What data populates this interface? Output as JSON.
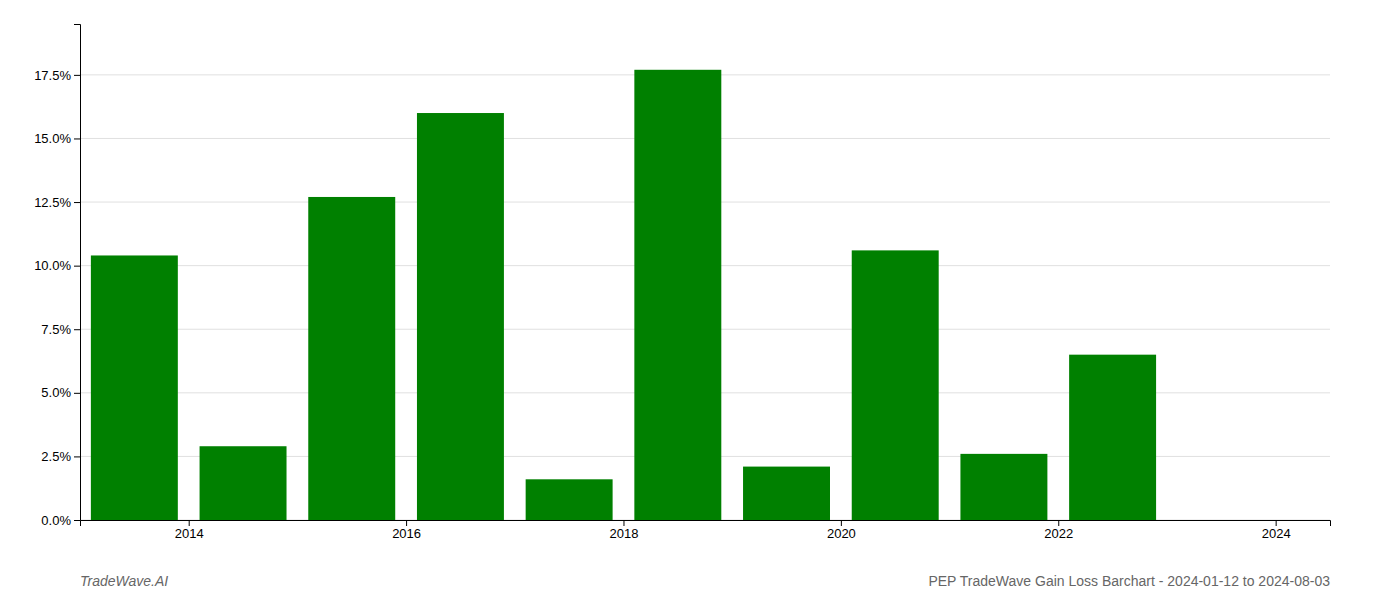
{
  "chart_data": {
    "type": "bar",
    "x": [
      2013.5,
      2014.5,
      2015.5,
      2016.5,
      2017.5,
      2018.5,
      2019.5,
      2020.5,
      2021.5,
      2022.5,
      2023.5
    ],
    "values": [
      0.104,
      0.029,
      0.127,
      0.16,
      0.016,
      0.177,
      0.021,
      0.106,
      0.026,
      0.065,
      0.0
    ],
    "color": "#008000",
    "xlim": [
      2013.0,
      2024.5
    ],
    "xticks": [
      2014,
      2016,
      2018,
      2020,
      2022,
      2024
    ],
    "ylim": [
      0,
      0.195
    ],
    "yticks": [
      {
        "value": 0.0,
        "label": "0.0%"
      },
      {
        "value": 0.025,
        "label": "2.5%"
      },
      {
        "value": 0.05,
        "label": "5.0%"
      },
      {
        "value": 0.075,
        "label": "7.5%"
      },
      {
        "value": 0.1,
        "label": "10.0%"
      },
      {
        "value": 0.125,
        "label": "12.5%"
      },
      {
        "value": 0.15,
        "label": "15.0%"
      },
      {
        "value": 0.175,
        "label": "17.5%"
      }
    ],
    "grid": true,
    "annotations": [
      "TradeWave.AI",
      "PEP TradeWave Gain Loss Barchart - 2024-01-12 to 2024-08-03"
    ]
  }
}
